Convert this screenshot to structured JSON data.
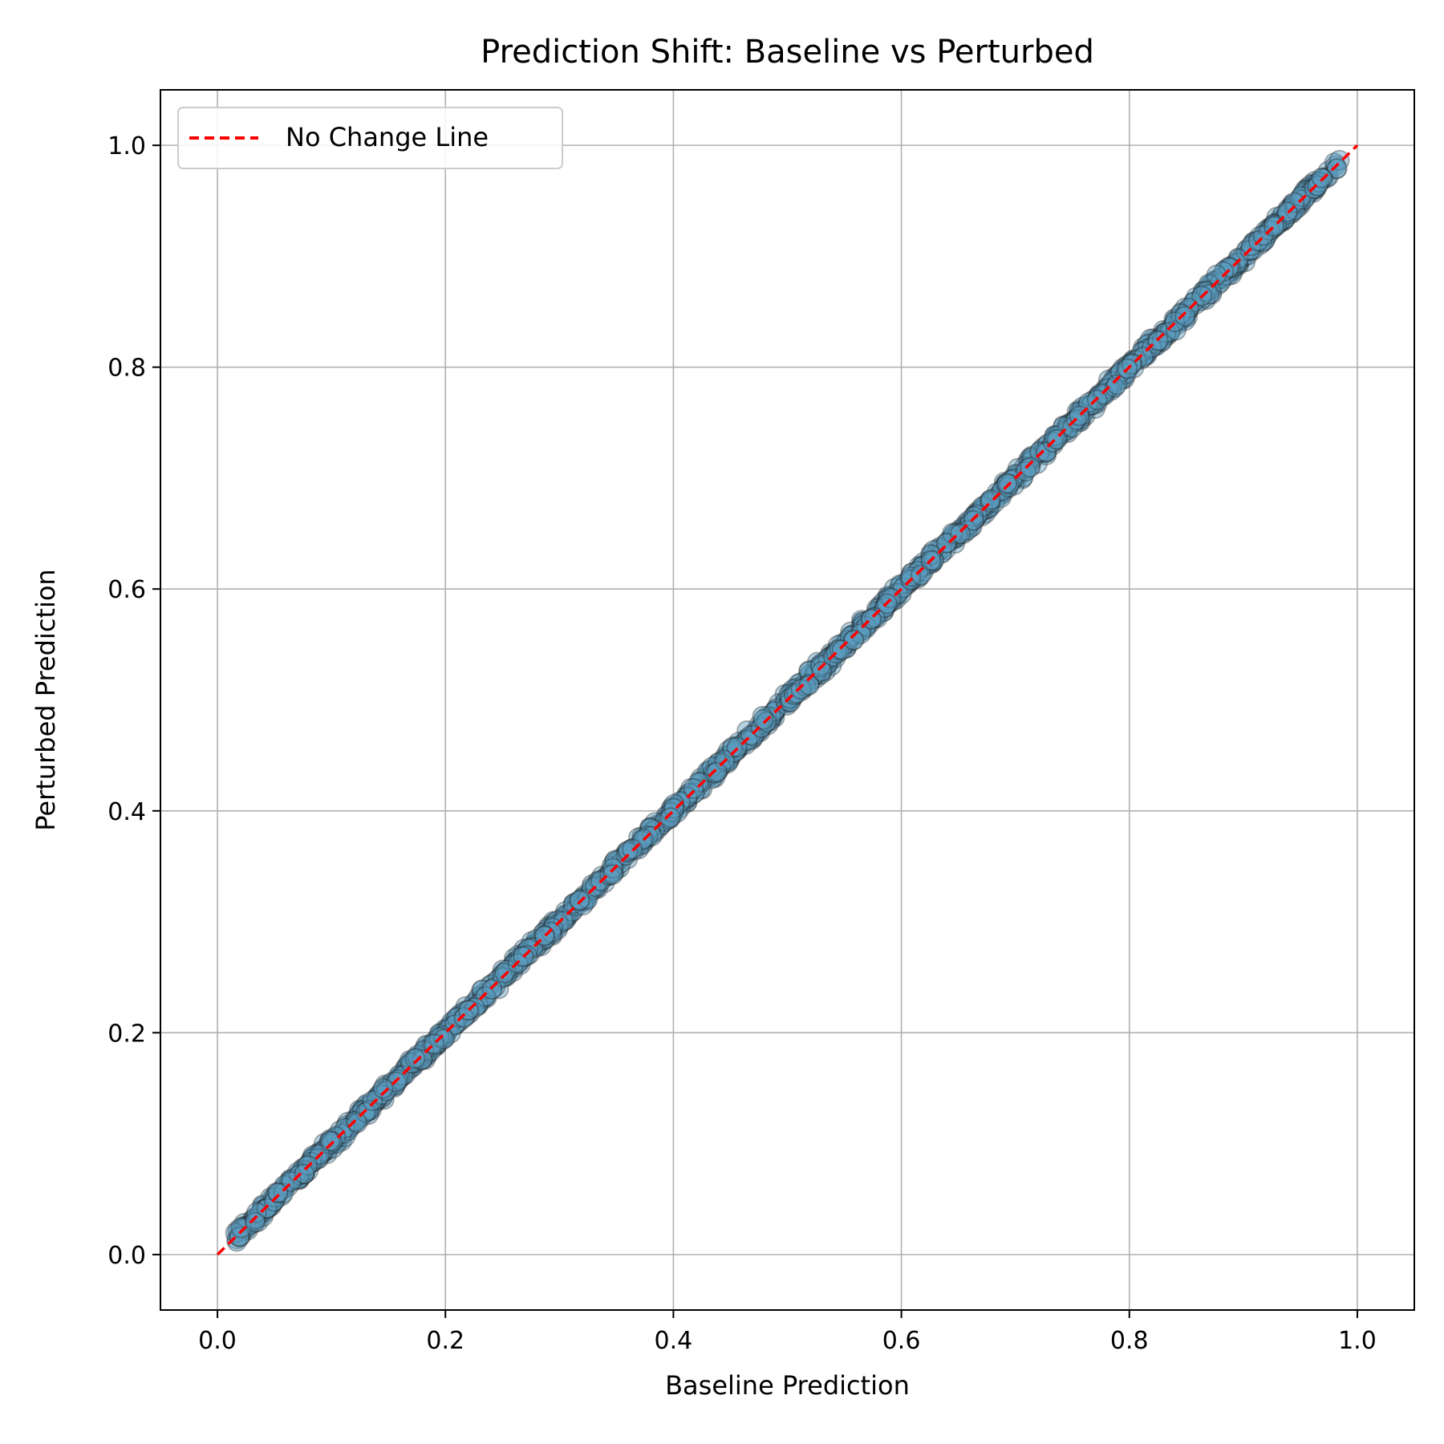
{
  "chart_data": {
    "type": "scatter",
    "title": "Prediction Shift: Baseline vs Perturbed",
    "xlabel": "Baseline Prediction",
    "ylabel": "Perturbed Prediction",
    "xlim": [
      -0.05,
      1.05
    ],
    "ylim": [
      -0.05,
      1.05
    ],
    "xticks": [
      "0.0",
      "0.2",
      "0.4",
      "0.6",
      "0.8",
      "1.0"
    ],
    "yticks": [
      "0.0",
      "0.2",
      "0.4",
      "0.6",
      "0.8",
      "1.0"
    ],
    "grid": true,
    "legend_position": "top-left",
    "series": [
      {
        "kind": "scatter",
        "color": "#5b9dc0",
        "edge_color": "#1c1c1c",
        "x_range": [
          0.015,
          0.985
        ],
        "relationship": "perturbed ≈ baseline (points lie tightly along y = x)"
      },
      {
        "kind": "line",
        "name": "No Change Line",
        "style": "dashed",
        "color": "#ff0000",
        "x": [
          0,
          1
        ],
        "y": [
          0,
          1
        ]
      }
    ]
  }
}
